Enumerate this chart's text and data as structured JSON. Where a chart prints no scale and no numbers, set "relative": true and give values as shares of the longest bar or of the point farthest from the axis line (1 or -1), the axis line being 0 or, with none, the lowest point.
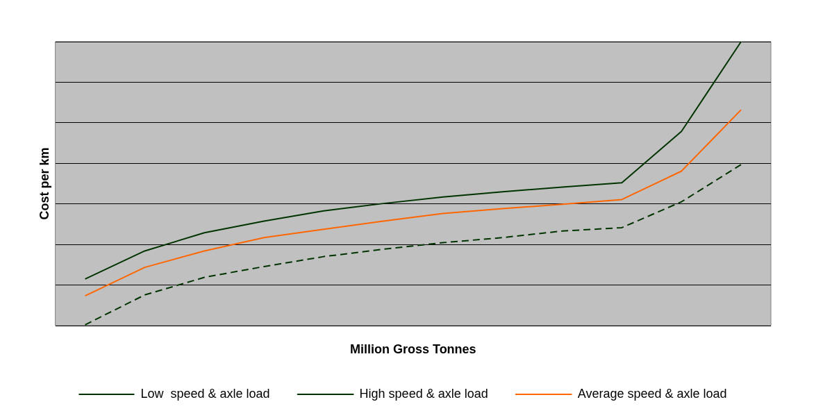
{
  "chart_data": {
    "type": "line",
    "relative": true,
    "xlabel": "Million Gross Tonnes",
    "ylabel": "Cost per km",
    "categories": [
      null,
      null,
      null,
      null,
      null,
      null,
      null,
      null,
      null,
      null,
      null,
      null
    ],
    "series": [
      {
        "name": "Low  speed & axle load",
        "color": "#003300",
        "line_style": "dashed",
        "values": [
          0.003,
          0.108,
          0.17,
          0.208,
          0.243,
          0.269,
          0.292,
          0.31,
          0.333,
          0.345,
          0.436,
          0.567
        ]
      },
      {
        "name": "High speed & axle load",
        "color": "#003300",
        "line_style": "solid",
        "values": [
          0.164,
          0.263,
          0.327,
          0.368,
          0.404,
          0.43,
          0.453,
          0.471,
          0.488,
          0.503,
          0.684,
          1
        ]
      },
      {
        "name": "Average speed & axle load",
        "color": "#ff6600",
        "line_style": "solid",
        "values": [
          0.105,
          0.205,
          0.263,
          0.31,
          0.339,
          0.368,
          0.395,
          0.412,
          0.427,
          0.444,
          0.544,
          0.76
        ]
      }
    ],
    "grid": "y",
    "legend": "bottom",
    "marker": "none"
  }
}
